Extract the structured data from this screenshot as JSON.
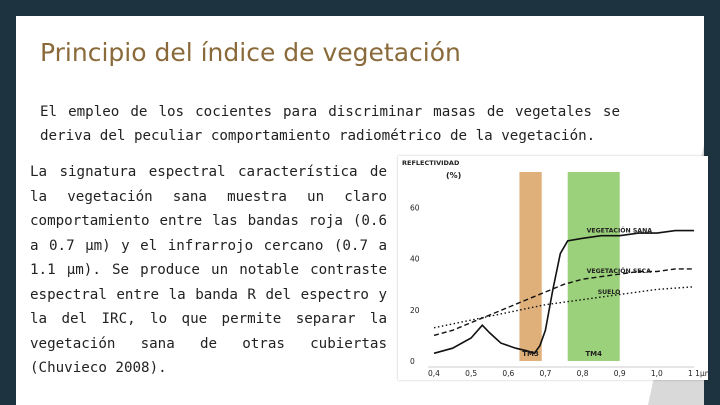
{
  "slide": {
    "title": "Principio del índice de vegetación",
    "intro": "El empleo de los cocientes para discriminar masas de vegetales se deriva del peculiar comportamiento radiométrico de la vegetación.",
    "body": "La signatura espectral característica de la vegetación sana muestra un claro comportamiento entre las bandas roja (0.6 a 0.7 µm) y el infrarrojo cercano (0.7 a 1.1 µm). Se produce un notable contraste espectral entre la banda R del espectro y la del IRC, lo que permite separar la vegetación sana de otras cubiertas (Chuvieco 2008)."
  },
  "colors": {
    "background": "#1e3340",
    "title": "#8a6a3a",
    "band_red": "#e0b07a",
    "band_nir": "#9bd17a"
  },
  "chart_data": {
    "type": "line",
    "ylabel_line1": "REFLECTIVIDAD",
    "ylabel_line2": "(%)",
    "xunit": "µm",
    "xlim": [
      0.4,
      1.1
    ],
    "ylim": [
      0,
      70
    ],
    "xticks": [
      0.4,
      0.5,
      0.6,
      0.7,
      0.8,
      0.9,
      1.0,
      1.1
    ],
    "xtick_labels": [
      "0,4",
      "0,5",
      "0,6",
      "0,7",
      "0,8",
      "0,9",
      "1,0",
      "1 1"
    ],
    "yticks": [
      0,
      20,
      40,
      60
    ],
    "ytick_labels": [
      "0",
      "20",
      "40",
      "60"
    ],
    "bands": [
      {
        "label": "TM3",
        "x0": 0.63,
        "x1": 0.69,
        "color": "#e0b07a"
      },
      {
        "label": "TM4",
        "x0": 0.76,
        "x1": 0.9,
        "color": "#9bd17a"
      }
    ],
    "series": [
      {
        "name": "VEGETACIÓN SANA",
        "style": "solid",
        "x": [
          0.4,
          0.45,
          0.5,
          0.53,
          0.55,
          0.58,
          0.62,
          0.65,
          0.67,
          0.685,
          0.7,
          0.72,
          0.74,
          0.76,
          0.8,
          0.85,
          0.9,
          0.95,
          1.0,
          1.05,
          1.1
        ],
        "y": [
          3,
          5,
          9,
          14,
          11,
          7,
          5,
          4,
          3,
          6,
          12,
          28,
          42,
          47,
          48,
          49,
          49,
          50,
          50,
          51,
          51
        ]
      },
      {
        "name": "VEGETACIÓN SECA",
        "style": "dashed",
        "x": [
          0.4,
          0.45,
          0.5,
          0.55,
          0.6,
          0.65,
          0.7,
          0.75,
          0.8,
          0.85,
          0.9,
          0.95,
          1.0,
          1.05,
          1.1
        ],
        "y": [
          10,
          12,
          15,
          18,
          21,
          24,
          27,
          30,
          32,
          33,
          34,
          35,
          35,
          36,
          36
        ]
      },
      {
        "name": "SUELO",
        "style": "dotted",
        "x": [
          0.4,
          0.5,
          0.6,
          0.7,
          0.8,
          0.9,
          1.0,
          1.1
        ],
        "y": [
          13,
          16,
          19,
          22,
          24,
          26,
          28,
          29
        ]
      }
    ]
  }
}
